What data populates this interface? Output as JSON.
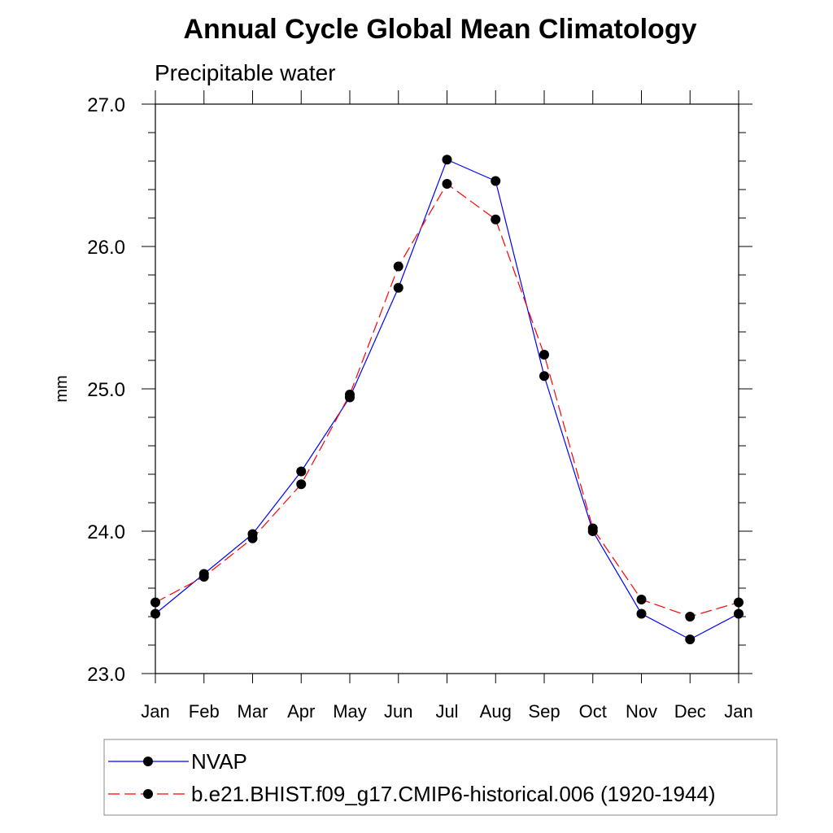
{
  "chart_data": {
    "type": "line",
    "title": "Annual Cycle Global Mean Climatology",
    "subtitle": "Precipitable water",
    "xlabel": "",
    "ylabel": "mm",
    "categories": [
      "Jan",
      "Feb",
      "Mar",
      "Apr",
      "May",
      "Jun",
      "Jul",
      "Aug",
      "Sep",
      "Oct",
      "Nov",
      "Dec",
      "Jan"
    ],
    "ylim": [
      23.0,
      27.0
    ],
    "yticks": [
      "23.0",
      "24.0",
      "25.0",
      "26.0",
      "27.0"
    ],
    "grid": false,
    "legend_position": "bottom",
    "series": [
      {
        "name": "NVAP",
        "color": "#0000ff",
        "style": "solid",
        "values": [
          23.42,
          23.7,
          23.98,
          24.42,
          24.94,
          25.71,
          26.61,
          26.46,
          25.09,
          24.0,
          23.42,
          23.24,
          23.42
        ]
      },
      {
        "name": "b.e21.BHIST.f09_g17.CMIP6-historical.006 (1920-1944)",
        "color": "#ff0000",
        "style": "dashed",
        "values": [
          23.5,
          23.68,
          23.95,
          24.33,
          24.96,
          25.86,
          26.44,
          26.19,
          25.24,
          24.02,
          23.52,
          23.4,
          23.5
        ]
      }
    ]
  }
}
